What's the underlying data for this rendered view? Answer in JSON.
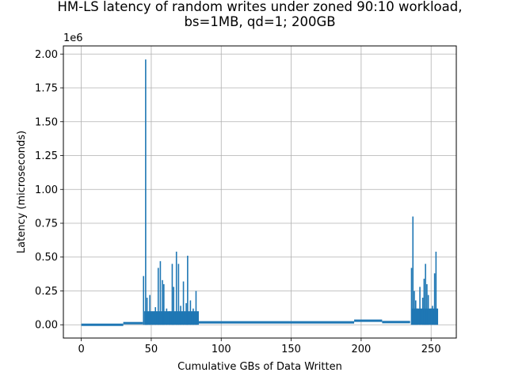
{
  "chart_data": {
    "type": "line",
    "title_line1": "HM-LS latency of random writes under zoned 90:10 workload,",
    "title_line2": "bs=1MB, qd=1; 200GB",
    "xlabel": "Cumulative GBs of Data Written",
    "ylabel": "Latency (microseconds)",
    "y_scale_label": "1e6",
    "xlim": [
      -12.8,
      268
    ],
    "ylim": [
      -0.098,
      2.06
    ],
    "y_multiplier": 1000000,
    "xticks": [
      0,
      50,
      100,
      150,
      200,
      250
    ],
    "xtick_labels": [
      "0",
      "50",
      "100",
      "150",
      "200",
      "250"
    ],
    "yticks": [
      0,
      0.25,
      0.5,
      0.75,
      1.0,
      1.25,
      1.5,
      1.75,
      2.0
    ],
    "ytick_labels": [
      "0.00",
      "0.25",
      "0.50",
      "0.75",
      "1.00",
      "1.25",
      "1.50",
      "1.75",
      "2.00"
    ],
    "grid": true,
    "color": "#1f77b4",
    "baseline_segments": [
      {
        "x": [
          0,
          30
        ],
        "y": 0.0
      },
      {
        "x": [
          30,
          44
        ],
        "y": 0.012
      },
      {
        "x": [
          84,
          195
        ],
        "y": 0.018
      },
      {
        "x": [
          195,
          215
        ],
        "y": 0.03
      },
      {
        "x": [
          215,
          235
        ],
        "y": 0.02
      }
    ],
    "dense_bands": [
      {
        "x": [
          45,
          84
        ],
        "y": [
          0.0,
          0.1
        ]
      },
      {
        "x": [
          236,
          255
        ],
        "y": [
          0.0,
          0.12
        ]
      }
    ],
    "spikes": [
      {
        "x": 44.5,
        "y": 0.36
      },
      {
        "x": 46.0,
        "y": 1.96
      },
      {
        "x": 47.0,
        "y": 0.2
      },
      {
        "x": 49.0,
        "y": 0.22
      },
      {
        "x": 51.0,
        "y": 0.08
      },
      {
        "x": 53.0,
        "y": 0.13
      },
      {
        "x": 55.0,
        "y": 0.42
      },
      {
        "x": 56.5,
        "y": 0.47
      },
      {
        "x": 58.0,
        "y": 0.33
      },
      {
        "x": 59.0,
        "y": 0.3
      },
      {
        "x": 61.0,
        "y": 0.12
      },
      {
        "x": 63.0,
        "y": 0.1
      },
      {
        "x": 65.0,
        "y": 0.45
      },
      {
        "x": 66.0,
        "y": 0.28
      },
      {
        "x": 68.0,
        "y": 0.54
      },
      {
        "x": 69.5,
        "y": 0.45
      },
      {
        "x": 71.0,
        "y": 0.14
      },
      {
        "x": 73.0,
        "y": 0.32
      },
      {
        "x": 75.0,
        "y": 0.16
      },
      {
        "x": 76.0,
        "y": 0.51
      },
      {
        "x": 78.0,
        "y": 0.18
      },
      {
        "x": 80.0,
        "y": 0.12
      },
      {
        "x": 82.0,
        "y": 0.25
      },
      {
        "x": 236.0,
        "y": 0.42
      },
      {
        "x": 237.0,
        "y": 0.8
      },
      {
        "x": 238.0,
        "y": 0.25
      },
      {
        "x": 239.0,
        "y": 0.18
      },
      {
        "x": 240.0,
        "y": 0.12
      },
      {
        "x": 242.0,
        "y": 0.28
      },
      {
        "x": 244.0,
        "y": 0.2
      },
      {
        "x": 245.0,
        "y": 0.34
      },
      {
        "x": 246.0,
        "y": 0.45
      },
      {
        "x": 247.0,
        "y": 0.3
      },
      {
        "x": 248.0,
        "y": 0.22
      },
      {
        "x": 250.0,
        "y": 0.12
      },
      {
        "x": 251.0,
        "y": 0.14
      },
      {
        "x": 252.5,
        "y": 0.38
      },
      {
        "x": 253.5,
        "y": 0.54
      },
      {
        "x": 254.5,
        "y": 0.1
      }
    ]
  }
}
